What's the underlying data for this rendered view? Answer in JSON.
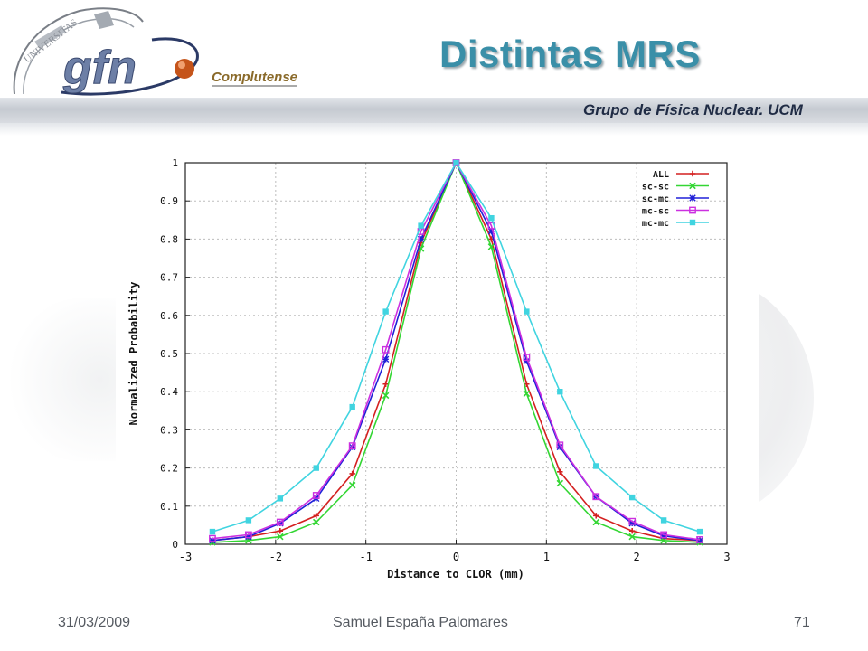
{
  "slide": {
    "title": "Distintas MRS",
    "group_label": "Grupo de Física Nuclear. UCM",
    "logo_text": "gfn",
    "logo_subtext": "Complutense",
    "logo_seal_text": "UNIVERSITAS"
  },
  "footer": {
    "date": "31/03/2009",
    "author": "Samuel España Palomares",
    "page": "71"
  },
  "colors": {
    "title": "#3a8fa8",
    "all": "#d42020",
    "sc_sc": "#33d633",
    "sc_mc": "#2020d8",
    "mc_sc": "#cc30e0",
    "mc_mc": "#40d4e0"
  },
  "chart_data": {
    "type": "line",
    "xlabel": "Distance to CLOR (mm)",
    "ylabel": "Normalized Probability",
    "xlim": [
      -3,
      3
    ],
    "ylim": [
      0,
      1
    ],
    "xticks": [
      -3,
      -2,
      -1,
      0,
      1,
      2,
      3
    ],
    "yticks": [
      0,
      0.1,
      0.2,
      0.3,
      0.4,
      0.5,
      0.6,
      0.7,
      0.8,
      0.9,
      1
    ],
    "grid": true,
    "legend_position": "top-right",
    "x": [
      -2.7,
      -2.3,
      -1.95,
      -1.55,
      -1.15,
      -0.78,
      -0.39,
      0,
      0.39,
      0.78,
      1.15,
      1.55,
      1.95,
      2.3,
      2.7
    ],
    "series": [
      {
        "name": "ALL",
        "marker": "plus",
        "color": "#d42020",
        "values": [
          0.01,
          0.02,
          0.035,
          0.075,
          0.185,
          0.42,
          0.79,
          1.0,
          0.8,
          0.42,
          0.19,
          0.075,
          0.035,
          0.015,
          0.01
        ]
      },
      {
        "name": "sc-sc",
        "marker": "x",
        "color": "#33d633",
        "values": [
          0.005,
          0.01,
          0.02,
          0.058,
          0.155,
          0.39,
          0.775,
          1.0,
          0.78,
          0.395,
          0.16,
          0.058,
          0.02,
          0.01,
          0.005
        ]
      },
      {
        "name": "sc-mc",
        "marker": "star",
        "color": "#2020d8",
        "values": [
          0.01,
          0.02,
          0.055,
          0.12,
          0.255,
          0.485,
          0.8,
          1.0,
          0.82,
          0.48,
          0.255,
          0.125,
          0.055,
          0.022,
          0.01
        ]
      },
      {
        "name": "mc-sc",
        "marker": "square-open",
        "color": "#cc30e0",
        "values": [
          0.015,
          0.025,
          0.058,
          0.128,
          0.258,
          0.51,
          0.82,
          1.0,
          0.835,
          0.49,
          0.26,
          0.125,
          0.06,
          0.025,
          0.012
        ]
      },
      {
        "name": "mc-mc",
        "marker": "square-filled",
        "color": "#40d4e0",
        "values": [
          0.033,
          0.063,
          0.12,
          0.2,
          0.36,
          0.61,
          0.835,
          1.0,
          0.855,
          0.61,
          0.4,
          0.205,
          0.123,
          0.063,
          0.033
        ]
      }
    ]
  }
}
